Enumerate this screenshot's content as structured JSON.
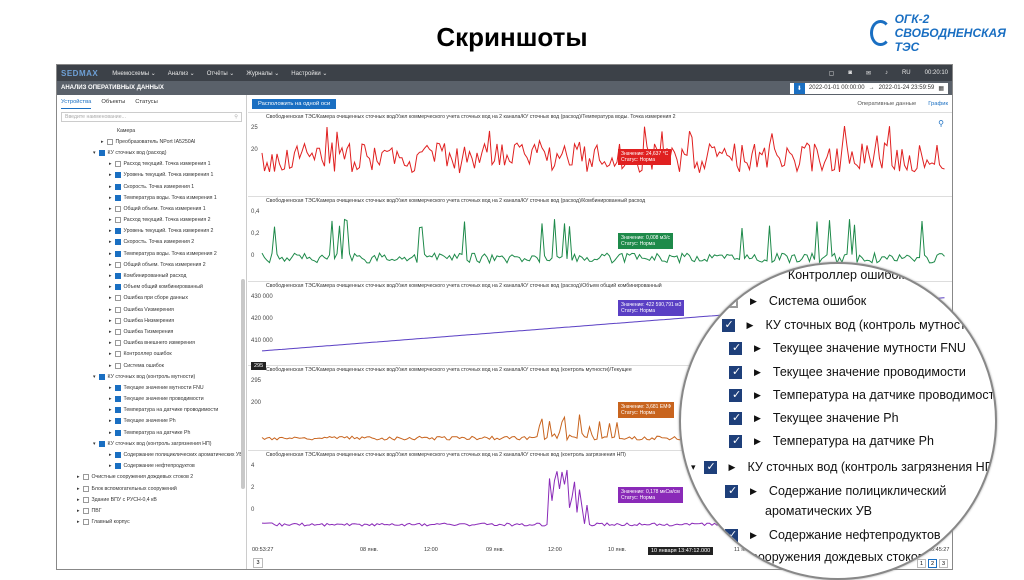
{
  "slide": {
    "title": "Скриншоты"
  },
  "logo": {
    "text": "ОГК-2 СВОБОДНЕНСКАЯ ТЭС"
  },
  "app": {
    "brand": "SEDMAX",
    "menu": [
      "Мнемосхемы",
      "Анализ",
      "Отчёты",
      "Журналы",
      "Настройки"
    ],
    "lang": "RU",
    "clock": "00:20:10",
    "section_title": "АНАЛИЗ ОПЕРАТИВНЫХ ДАННЫХ",
    "range_from": "2022-01-01 00:00:00",
    "range_to": "2022-01-24 23:59:59",
    "left_tabs": [
      "Устройства",
      "Объекты",
      "Статусы"
    ],
    "search_placeholder": "Введите наименование...",
    "tree": [
      {
        "label": "Камера",
        "indent": 60,
        "cb": false,
        "arrow": ""
      },
      {
        "label": "Преобразователь NPort IA5250AI",
        "indent": 44,
        "cb": false,
        "arrow": "▸"
      },
      {
        "label": "КУ сточных вод (расход)",
        "indent": 36,
        "cb": true,
        "arrow": "▾"
      },
      {
        "label": "Расход текущий. Точка измерения 1",
        "indent": 52,
        "cb": false,
        "arrow": "▸"
      },
      {
        "label": "Уровень текущий. Точка измерения 1",
        "indent": 52,
        "cb": true,
        "arrow": "▸"
      },
      {
        "label": "Скорость. Точка измерения 1",
        "indent": 52,
        "cb": true,
        "arrow": "▸"
      },
      {
        "label": "Температура воды. Точка измерения 1",
        "indent": 52,
        "cb": true,
        "arrow": "▸"
      },
      {
        "label": "Общий объем. Точка измерения 1",
        "indent": 52,
        "cb": false,
        "arrow": "▸"
      },
      {
        "label": "Расход текущий. Точка измерения 2",
        "indent": 52,
        "cb": false,
        "arrow": "▸"
      },
      {
        "label": "Уровень текущий. Точка измерения 2",
        "indent": 52,
        "cb": true,
        "arrow": "▸"
      },
      {
        "label": "Скорость. Точка измерения 2",
        "indent": 52,
        "cb": true,
        "arrow": "▸"
      },
      {
        "label": "Температура воды. Точка измерения 2",
        "indent": 52,
        "cb": true,
        "arrow": "▸"
      },
      {
        "label": "Общий объем. Точка измерения 2",
        "indent": 52,
        "cb": false,
        "arrow": "▸"
      },
      {
        "label": "Комбинированный расход",
        "indent": 52,
        "cb": true,
        "arrow": "▸"
      },
      {
        "label": "Объем общий комбинированный",
        "indent": 52,
        "cb": true,
        "arrow": "▸"
      },
      {
        "label": "Ошибка при сборе данных",
        "indent": 52,
        "cb": false,
        "arrow": "▸"
      },
      {
        "label": "Ошибка Vизмерения",
        "indent": 52,
        "cb": false,
        "arrow": "▸"
      },
      {
        "label": "Ошибка Низмерения",
        "indent": 52,
        "cb": false,
        "arrow": "▸"
      },
      {
        "label": "Ошибка Тизмерения",
        "indent": 52,
        "cb": false,
        "arrow": "▸"
      },
      {
        "label": "Ошибка внешнего измерения",
        "indent": 52,
        "cb": false,
        "arrow": "▸"
      },
      {
        "label": "Контроллер ошибок",
        "indent": 52,
        "cb": false,
        "arrow": "▸"
      },
      {
        "label": "Система ошибок",
        "indent": 52,
        "cb": false,
        "arrow": "▸"
      },
      {
        "label": "КУ сточных вод (контроль мутности)",
        "indent": 36,
        "cb": true,
        "arrow": "▾"
      },
      {
        "label": "Текущее значение мутности FNU",
        "indent": 52,
        "cb": true,
        "arrow": "▸"
      },
      {
        "label": "Текущее значение проводимости",
        "indent": 52,
        "cb": true,
        "arrow": "▸"
      },
      {
        "label": "Температура на датчике проводимости",
        "indent": 52,
        "cb": true,
        "arrow": "▸"
      },
      {
        "label": "Текущее значение Ph",
        "indent": 52,
        "cb": true,
        "arrow": "▸"
      },
      {
        "label": "Температура на датчике Ph",
        "indent": 52,
        "cb": true,
        "arrow": "▸"
      },
      {
        "label": "КУ сточных вод (контроль загрязнения НП)",
        "indent": 36,
        "cb": true,
        "arrow": "▾"
      },
      {
        "label": "Содержание полициклических ароматических УВ",
        "indent": 52,
        "cb": true,
        "arrow": "▸"
      },
      {
        "label": "Содержание нефтепродуктов",
        "indent": 52,
        "cb": true,
        "arrow": "▸"
      },
      {
        "label": "Очистные сооружения дождевых стоков 2",
        "indent": 20,
        "cb": false,
        "arrow": "▸"
      },
      {
        "label": "Блок вспомогательных сооружений",
        "indent": 20,
        "cb": false,
        "arrow": "▸"
      },
      {
        "label": "Здание ВПУ с РУСН-0,4 кВ",
        "indent": 20,
        "cb": false,
        "arrow": "▸"
      },
      {
        "label": "ПВГ",
        "indent": 20,
        "cb": false,
        "arrow": "▸"
      },
      {
        "label": "Главный корпус",
        "indent": 20,
        "cb": false,
        "arrow": "▸"
      }
    ],
    "align_button": "Расположить на одной оси",
    "right_tabs": [
      "Оперативные данные",
      "График"
    ],
    "panels": [
      {
        "title": "Свободненская ТЭС/Камера очищенных сточных вод/Узел коммерческого учета сточных вод на 2 канала/КУ сточных вод (расход)/Температура воды. Точка измерения 2",
        "color": "#e02020",
        "yl": [
          "25",
          "20"
        ],
        "tip1": "Значение: 24,637 °С",
        "tip2": "Статус: Норма"
      },
      {
        "title": "Свободненская ТЭС/Камера очищенных сточных вод/Узел коммерческого учета сточных вод на 2 канала/КУ сточных вод (расход)/Комбинированный расход",
        "color": "#1e8a4a",
        "yl": [
          "0,4",
          "0,2",
          "0"
        ],
        "tip1": "Значение: 0,008 м3/с",
        "tip2": "Статус: Норма"
      },
      {
        "title": "Свободненская ТЭС/Камера очищенных сточных вод/Узел коммерческого учета сточных вод на 2 канала/КУ сточных вод (расход)/Объем общий комбинированный",
        "color": "#5a3fc4",
        "yl": [
          "430 000",
          "420 000",
          "410 000"
        ],
        "tip1": "Значение: 422 590,791 м3",
        "tip2": "Статус: Норма"
      },
      {
        "title": "Свободненская ТЭС/Камера очищенных сточных вод/Узел коммерческого учета сточных вод на 2 канала/КУ сточных вод (контроль мутности)/Текущее",
        "color": "#c8641e",
        "yl": [
          "295",
          "200"
        ],
        "tip1": "Значение: 3,681 EMФ",
        "tip2": "Статус: Норма"
      },
      {
        "title": "Свободненская ТЭС/Камера очищенных сточных вод/Узел коммерческого учета сточных вод на 2 канала/КУ сточных вод (контроль загрязнения НП)",
        "color": "#8a2ab8",
        "yl": [
          "4",
          "2",
          "0"
        ],
        "tip1": "Значение: 0,178 мкСм/см",
        "tip2": "Статус: Норма"
      }
    ],
    "x_ticks": [
      "00:53:27",
      "08 янв.",
      "12:00",
      "09 янв.",
      "12:00",
      "10 янв.",
      "11 янв.",
      "16:45:27"
    ],
    "cursor_time": "10 января 13:47:12.000",
    "marker": "295",
    "page_input": "3",
    "pages": [
      "1",
      "2",
      "3"
    ]
  },
  "magnifier": {
    "rows": [
      {
        "label": "Контроллер ошибок",
        "cb": false,
        "tri": true
      },
      {
        "label": "Система ошибок",
        "cb": false,
        "tri": true
      },
      {
        "label": "КУ сточных вод (контроль мутности)",
        "cb": true,
        "tri": true
      },
      {
        "label": "Текущее значение мутности FNU",
        "cb": true,
        "tri": true
      },
      {
        "label": "Текущее значение проводимости",
        "cb": true,
        "tri": true
      },
      {
        "label": "Температура на датчике проводимости",
        "cb": true,
        "tri": true
      },
      {
        "label": "Текущее значение Ph",
        "cb": true,
        "tri": true
      },
      {
        "label": "Температура на датчике Ph",
        "cb": true,
        "tri": true
      },
      {
        "label": "КУ сточных вод (контроль загрязнения НП)",
        "cb": true,
        "tri": true
      },
      {
        "label": "Содержание полициклический",
        "cb": true,
        "tri": true
      },
      {
        "label": "ароматических УВ",
        "cb": false,
        "tri": false
      },
      {
        "label": "Содержание нефтепродуктов",
        "cb": true,
        "tri": true
      },
      {
        "label": "е сооружения дождевых стоков",
        "cb": false,
        "tri": false
      }
    ]
  }
}
